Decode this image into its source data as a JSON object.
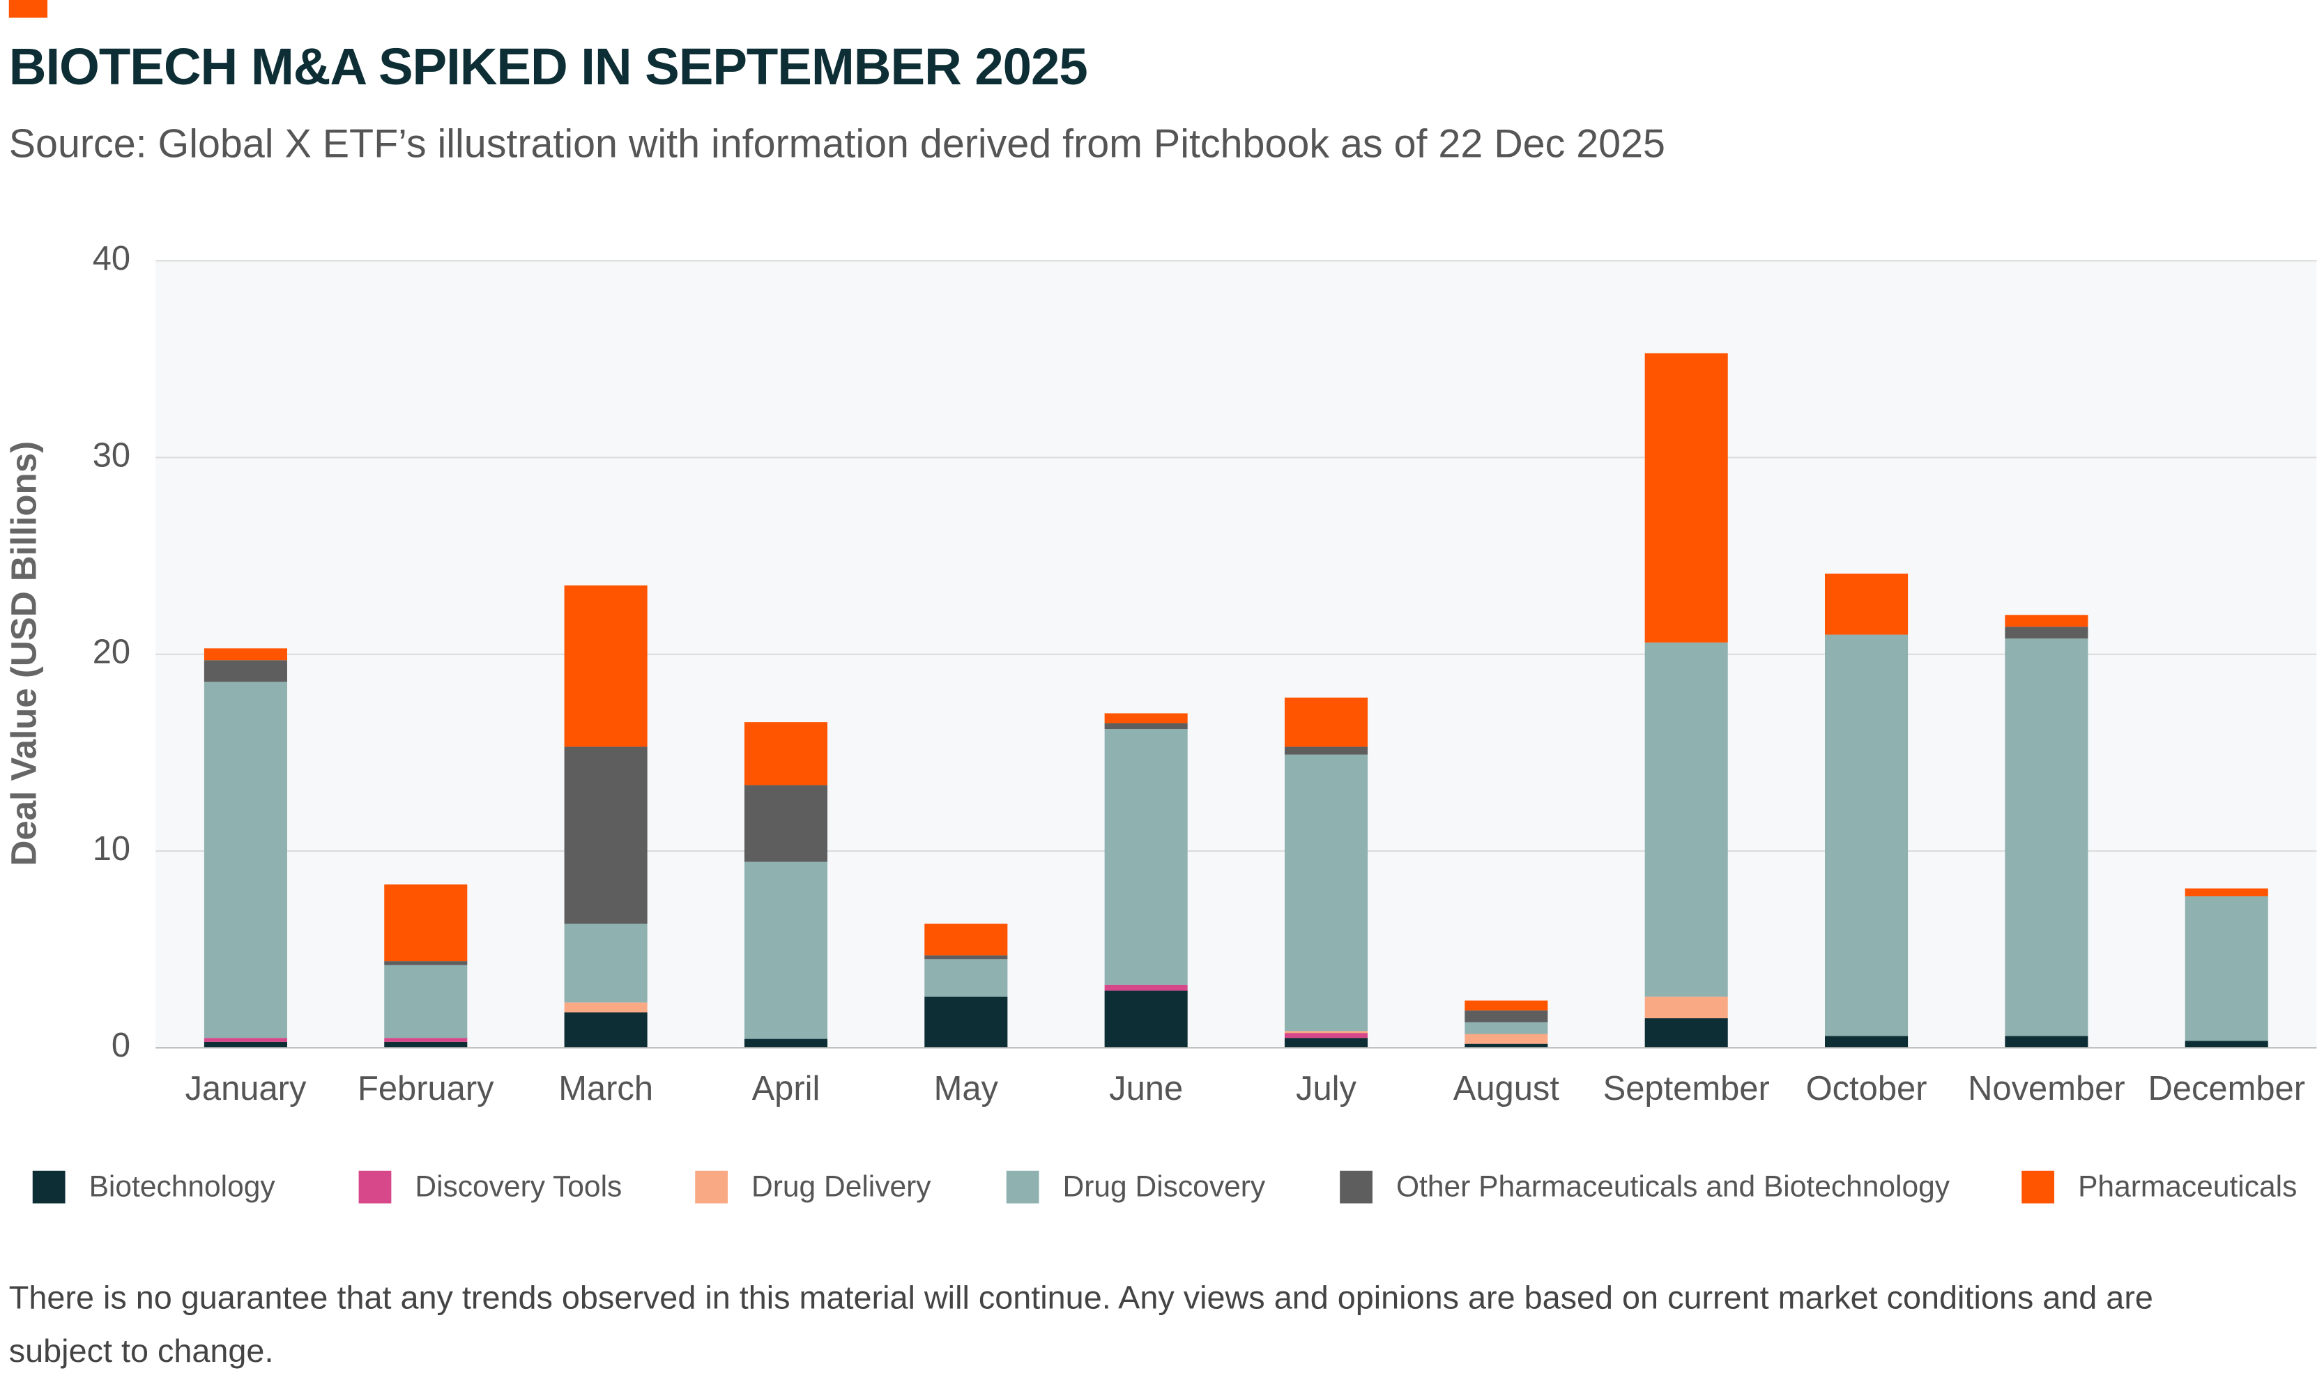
{
  "chart_data": {
    "type": "stacked_bar",
    "title": "BIOTECH M&A SPIKED IN SEPTEMBER 2025",
    "subtitle": "Source: Global X ETF’s illustration with information derived from Pitchbook as of 22 Dec 2025",
    "y_label": "Deal Value (USD Billions)",
    "categories": [
      "January",
      "February",
      "March",
      "April",
      "May",
      "June",
      "July",
      "August",
      "September",
      "October",
      "November",
      "December"
    ],
    "series": [
      {
        "name": "Biotechnology",
        "color": "#0d2e35",
        "values": [
          0.3,
          0.3,
          1.8,
          0.45,
          2.6,
          2.9,
          0.5,
          0.2,
          1.5,
          0.6,
          0.6,
          0.35
        ]
      },
      {
        "name": "Discovery Tools",
        "color": "#d6488a",
        "values": [
          0.2,
          0.2,
          0,
          0,
          0,
          0.3,
          0.25,
          0,
          0,
          0,
          0,
          0
        ]
      },
      {
        "name": "Drug Delivery",
        "color": "#f9aa85",
        "values": [
          0,
          0,
          0.5,
          0,
          0,
          0,
          0.1,
          0.5,
          1.1,
          0,
          0,
          0
        ]
      },
      {
        "name": "Drug Discovery",
        "color": "#8fb1b0",
        "values": [
          18.1,
          3.7,
          4.0,
          9.0,
          1.9,
          13.0,
          14.05,
          0.6,
          18.0,
          20.4,
          20.2,
          7.35
        ]
      },
      {
        "name": "Other Pharmaceuticals and Biotechnology",
        "color": "#5e5e5e",
        "values": [
          1.1,
          0.2,
          9.0,
          3.9,
          0.2,
          0.3,
          0.4,
          0.6,
          0,
          0,
          0.6,
          0
        ]
      },
      {
        "name": "Pharmaceuticals",
        "color": "#ff5400",
        "values": [
          0.6,
          3.9,
          8.2,
          3.2,
          1.6,
          0.5,
          2.5,
          0.5,
          14.7,
          3.1,
          0.6,
          0.4
        ]
      }
    ],
    "ylim": [
      0,
      40
    ],
    "yticks": [
      0,
      10,
      20,
      30,
      40
    ],
    "grid": true
  },
  "footnote": "There is no guarantee that any trends observed in this material will continue. Any views and opinions are based on current market conditions and are subject to change."
}
